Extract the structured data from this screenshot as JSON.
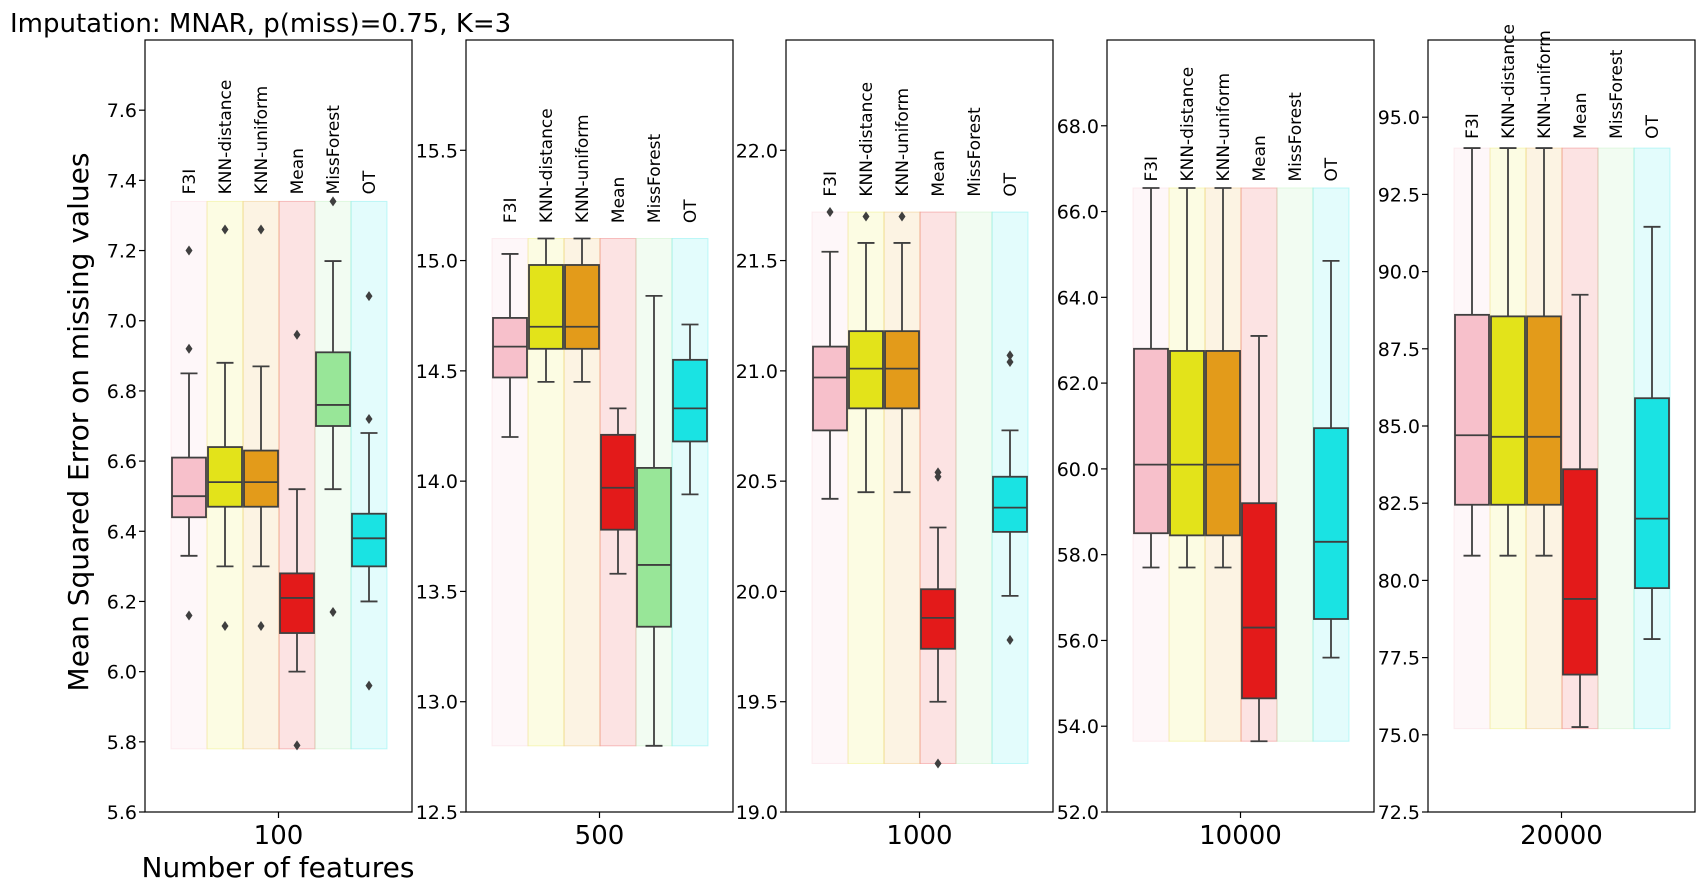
{
  "chart_data": {
    "type": "boxplot",
    "title": "Imputation: MNAR, p(miss)=0.75, K=3",
    "ylabel": "Mean Squared Error on missing values",
    "xlabel": "Number of features",
    "methods": [
      "F3I",
      "KNN-distance",
      "KNN-uniform",
      "Mean",
      "MissForest",
      "OT"
    ],
    "method_colors": [
      "#f7c0cb",
      "#e3e31a",
      "#e39b1a",
      "#e31a1a",
      "#98e698",
      "#1ae3e3"
    ],
    "panels": [
      {
        "category": "100",
        "ylim": [
          5.6,
          7.8
        ],
        "yticks": [
          "5.6",
          "5.8",
          "6.0",
          "6.2",
          "6.4",
          "6.6",
          "6.8",
          "7.0",
          "7.2",
          "7.4",
          "7.6"
        ],
        "shade_range": [
          5.78,
          7.34
        ],
        "label_anchor": 7.36,
        "boxes": [
          {
            "q1": 6.44,
            "med": 6.5,
            "q3": 6.61,
            "lo": 6.33,
            "hi": 6.85,
            "fliers": [
              7.2,
              6.92,
              6.16
            ]
          },
          {
            "q1": 6.47,
            "med": 6.54,
            "q3": 6.64,
            "lo": 6.3,
            "hi": 6.88,
            "fliers": [
              7.26,
              6.13
            ]
          },
          {
            "q1": 6.47,
            "med": 6.54,
            "q3": 6.63,
            "lo": 6.3,
            "hi": 6.87,
            "fliers": [
              7.26,
              6.13
            ]
          },
          {
            "q1": 6.11,
            "med": 6.21,
            "q3": 6.28,
            "lo": 6.0,
            "hi": 6.52,
            "fliers": [
              6.96,
              5.79
            ]
          },
          {
            "q1": 6.7,
            "med": 6.76,
            "q3": 6.91,
            "lo": 6.52,
            "hi": 7.17,
            "fliers": [
              7.34,
              6.17
            ]
          },
          {
            "q1": 6.3,
            "med": 6.38,
            "q3": 6.45,
            "lo": 6.2,
            "hi": 6.68,
            "fliers": [
              7.07,
              6.72,
              5.96
            ]
          }
        ]
      },
      {
        "category": "500",
        "ylim": [
          12.5,
          16.0
        ],
        "yticks": [
          "12.5",
          "13.0",
          "13.5",
          "14.0",
          "14.5",
          "15.0",
          "15.5"
        ],
        "shade_range": [
          12.8,
          15.1
        ],
        "label_anchor": 15.17,
        "boxes": [
          {
            "q1": 14.47,
            "med": 14.61,
            "q3": 14.74,
            "lo": 14.2,
            "hi": 15.03,
            "fliers": []
          },
          {
            "q1": 14.6,
            "med": 14.7,
            "q3": 14.98,
            "lo": 14.45,
            "hi": 15.1,
            "fliers": []
          },
          {
            "q1": 14.6,
            "med": 14.7,
            "q3": 14.98,
            "lo": 14.45,
            "hi": 15.1,
            "fliers": []
          },
          {
            "q1": 13.78,
            "med": 13.97,
            "q3": 14.21,
            "lo": 13.58,
            "hi": 14.33,
            "fliers": []
          },
          {
            "q1": 13.34,
            "med": 13.62,
            "q3": 14.06,
            "lo": 12.8,
            "hi": 14.84,
            "fliers": []
          },
          {
            "q1": 14.18,
            "med": 14.33,
            "q3": 14.55,
            "lo": 13.94,
            "hi": 14.71,
            "fliers": []
          }
        ]
      },
      {
        "category": "1000",
        "ylim": [
          19.0,
          22.5
        ],
        "yticks": [
          "19.0",
          "19.5",
          "20.0",
          "20.5",
          "21.0",
          "21.5",
          "22.0"
        ],
        "shade_range": [
          19.22,
          21.72
        ],
        "label_anchor": 21.79,
        "boxes": [
          {
            "q1": 20.73,
            "med": 20.97,
            "q3": 21.11,
            "lo": 20.42,
            "hi": 21.54,
            "fliers": [
              21.72
            ]
          },
          {
            "q1": 20.83,
            "med": 21.01,
            "q3": 21.18,
            "lo": 20.45,
            "hi": 21.58,
            "fliers": [
              21.7
            ]
          },
          {
            "q1": 20.83,
            "med": 21.01,
            "q3": 21.18,
            "lo": 20.45,
            "hi": 21.58,
            "fliers": [
              21.7
            ]
          },
          {
            "q1": 19.74,
            "med": 19.88,
            "q3": 20.01,
            "lo": 19.5,
            "hi": 20.29,
            "fliers": [
              20.54,
              20.52,
              19.22
            ]
          },
          {
            "q1": null,
            "med": null,
            "q3": null,
            "lo": null,
            "hi": null,
            "fliers": []
          },
          {
            "q1": 20.27,
            "med": 20.38,
            "q3": 20.52,
            "lo": 19.98,
            "hi": 20.73,
            "fliers": [
              21.07,
              21.04,
              19.78
            ]
          }
        ]
      },
      {
        "category": "10000",
        "ylim": [
          52.0,
          70.0
        ],
        "yticks": [
          "52.0",
          "54.0",
          "56.0",
          "58.0",
          "60.0",
          "62.0",
          "64.0",
          "66.0",
          "68.0"
        ],
        "shade_range": [
          53.65,
          66.55
        ],
        "label_anchor": 66.7,
        "boxes": [
          {
            "q1": 58.5,
            "med": 60.1,
            "q3": 62.8,
            "lo": 57.7,
            "hi": 66.55,
            "fliers": []
          },
          {
            "q1": 58.45,
            "med": 60.1,
            "q3": 62.75,
            "lo": 57.7,
            "hi": 66.55,
            "fliers": []
          },
          {
            "q1": 58.45,
            "med": 60.1,
            "q3": 62.75,
            "lo": 57.7,
            "hi": 66.55,
            "fliers": []
          },
          {
            "q1": 54.65,
            "med": 56.3,
            "q3": 59.2,
            "lo": 53.65,
            "hi": 63.1,
            "fliers": []
          },
          {
            "q1": null,
            "med": null,
            "q3": null,
            "lo": null,
            "hi": null,
            "fliers": []
          },
          {
            "q1": 56.5,
            "med": 58.3,
            "q3": 60.95,
            "lo": 55.6,
            "hi": 64.85,
            "fliers": []
          }
        ]
      },
      {
        "category": "20000",
        "ylim": [
          72.5,
          97.5
        ],
        "yticks": [
          "72.5",
          "75.0",
          "77.5",
          "80.0",
          "82.5",
          "85.0",
          "87.5",
          "90.0",
          "92.5",
          "95.0"
        ],
        "shade_range": [
          75.2,
          94.0
        ],
        "label_anchor": 94.3,
        "boxes": [
          {
            "q1": 82.45,
            "med": 84.7,
            "q3": 88.6,
            "lo": 80.8,
            "hi": 94.0,
            "fliers": []
          },
          {
            "q1": 82.45,
            "med": 84.65,
            "q3": 88.55,
            "lo": 80.8,
            "hi": 94.0,
            "fliers": []
          },
          {
            "q1": 82.45,
            "med": 84.65,
            "q3": 88.55,
            "lo": 80.8,
            "hi": 94.0,
            "fliers": []
          },
          {
            "q1": 76.95,
            "med": 79.4,
            "q3": 83.6,
            "lo": 75.25,
            "hi": 89.25,
            "fliers": []
          },
          {
            "q1": null,
            "med": null,
            "q3": null,
            "lo": null,
            "hi": null,
            "fliers": []
          },
          {
            "q1": 79.75,
            "med": 82.0,
            "q3": 85.9,
            "lo": 78.1,
            "hi": 91.45,
            "fliers": []
          }
        ]
      }
    ]
  }
}
